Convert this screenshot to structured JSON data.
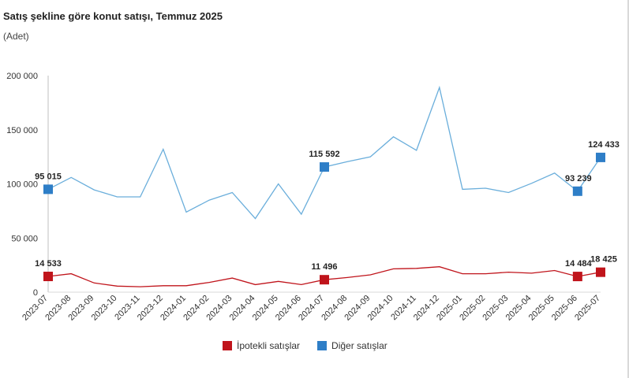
{
  "title": "Satış şekline göre konut satışı, Temmuz 2025",
  "subtitle": "(Adet)",
  "colors": {
    "ipotekli": "#c0141b",
    "diger": "#2e7ec7",
    "diger_line": "#6aaedb",
    "ipotekli_line": "#c0141b"
  },
  "chart_data": {
    "type": "line",
    "title": "Satış şekline göre konut satışı, Temmuz 2025",
    "ylabel": "(Adet)",
    "xlabel": "",
    "ylim": [
      0,
      200000
    ],
    "yticks": [
      0,
      50000,
      100000,
      150000,
      200000
    ],
    "ytick_labels": [
      "0",
      "50 000",
      "100 000",
      "150 000",
      "200 000"
    ],
    "categories": [
      "2023-07",
      "2023-08",
      "2023-09",
      "2023-10",
      "2023-11",
      "2023-12",
      "2024-01",
      "2024-02",
      "2024-03",
      "2024-04",
      "2024-05",
      "2024-06",
      "2024-07",
      "2024-08",
      "2024-09",
      "2024-10",
      "2024-11",
      "2024-12",
      "2025-01",
      "2025-02",
      "2025-03",
      "2025-04",
      "2025-05",
      "2025-06",
      "2025-07"
    ],
    "series": [
      {
        "name": "İpotekli satışlar",
        "color": "#c0141b",
        "values": [
          14533,
          17000,
          8500,
          5600,
          5000,
          6000,
          6000,
          9000,
          13000,
          7000,
          10000,
          7000,
          11496,
          13500,
          16000,
          21500,
          22000,
          23500,
          17000,
          17000,
          18500,
          17500,
          20000,
          14484,
          18425
        ]
      },
      {
        "name": "Diğer satışlar",
        "color": "#2e7ec7",
        "values": [
          95015,
          106000,
          94500,
          88000,
          88000,
          132000,
          74000,
          85000,
          92000,
          68000,
          100000,
          72000,
          115592,
          120500,
          125000,
          143500,
          131000,
          189000,
          95000,
          96000,
          92000,
          100500,
          110000,
          93239,
          124433
        ]
      }
    ],
    "annotations": [
      {
        "series": 1,
        "index": 0,
        "label": "95 015"
      },
      {
        "series": 1,
        "index": 12,
        "label": "115 592"
      },
      {
        "series": 1,
        "index": 23,
        "label": "93 239"
      },
      {
        "series": 1,
        "index": 24,
        "label": "124 433"
      },
      {
        "series": 0,
        "index": 0,
        "label": "14 533"
      },
      {
        "series": 0,
        "index": 12,
        "label": "11 496"
      },
      {
        "series": 0,
        "index": 23,
        "label": "14 484"
      },
      {
        "series": 0,
        "index": 24,
        "label": "18 425"
      }
    ],
    "legend": {
      "position": "bottom-center",
      "items": [
        "İpotekli satışlar",
        "Diğer satışlar"
      ]
    }
  }
}
